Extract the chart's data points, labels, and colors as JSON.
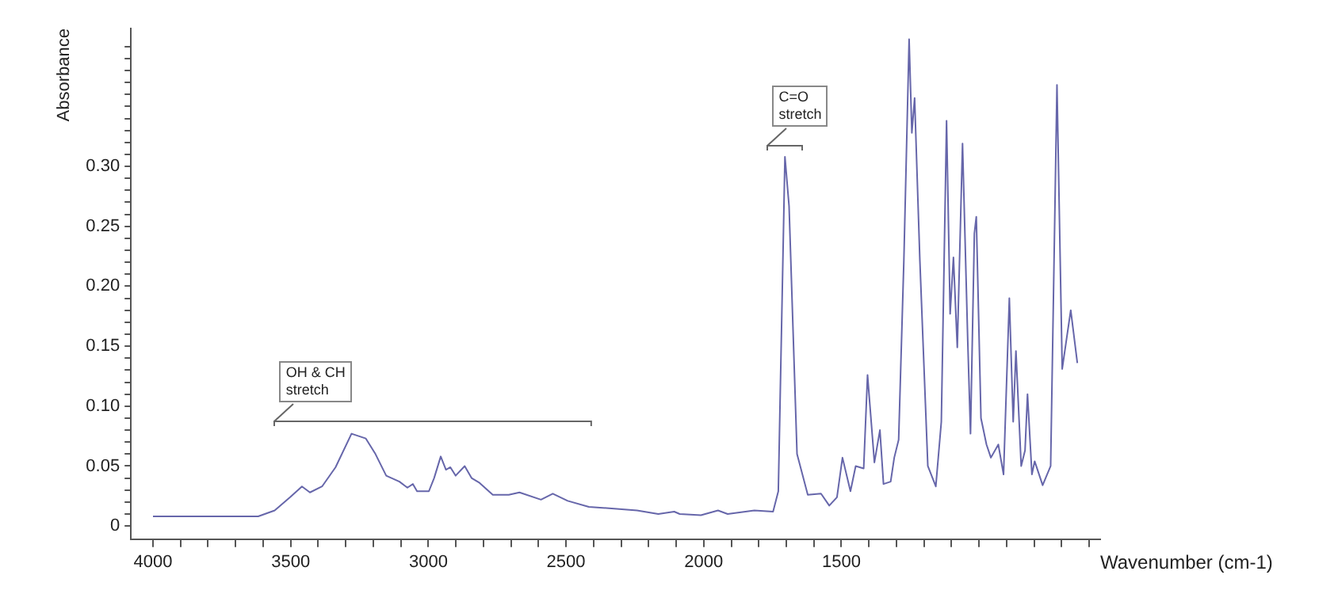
{
  "chart_data": {
    "type": "line",
    "xlabel": "Wavenumber (cm-1)",
    "ylabel": "Absorbance",
    "xlim": [
      4080,
      560
    ],
    "ylim": [
      -0.011,
      0.415
    ],
    "xticks": [
      4000,
      {
        "value": 3900,
        "label": null
      },
      {
        "value": 3800,
        "label": null
      },
      {
        "value": 3700,
        "label": null
      },
      {
        "value": 3600,
        "label": null
      },
      3500,
      {
        "value": 3400,
        "label": null
      },
      {
        "value": 3300,
        "label": null
      },
      {
        "value": 3200,
        "label": null
      },
      {
        "value": 3100,
        "label": null
      },
      3000,
      {
        "value": 2900,
        "label": null
      },
      {
        "value": 2800,
        "label": null
      },
      {
        "value": 2700,
        "label": null
      },
      {
        "value": 2600,
        "label": null
      },
      2500,
      {
        "value": 2400,
        "label": null
      },
      {
        "value": 2300,
        "label": null
      },
      {
        "value": 2200,
        "label": null
      },
      {
        "value": 2100,
        "label": null
      },
      2000,
      {
        "value": 1900,
        "label": null
      },
      {
        "value": 1800,
        "label": null
      },
      {
        "value": 1700,
        "label": null
      },
      {
        "value": 1600,
        "label": null
      },
      1500,
      {
        "value": 1400,
        "label": null
      },
      {
        "value": 1300,
        "label": null
      },
      {
        "value": 1200,
        "label": null
      },
      {
        "value": 1100,
        "label": null
      },
      {
        "value": 1000,
        "label": null
      },
      {
        "value": 900,
        "label": null
      },
      {
        "value": 800,
        "label": null
      },
      {
        "value": 700,
        "label": null
      },
      {
        "value": 600,
        "label": null
      }
    ],
    "yticks": [
      {
        "value": 0,
        "label": "0"
      },
      {
        "value": 0.01,
        "label": null
      },
      {
        "value": 0.02,
        "label": null
      },
      {
        "value": 0.03,
        "label": null
      },
      {
        "value": 0.04,
        "label": null
      },
      {
        "value": 0.05,
        "label": "0.05"
      },
      {
        "value": 0.06,
        "label": null
      },
      {
        "value": 0.07,
        "label": null
      },
      {
        "value": 0.08,
        "label": null
      },
      {
        "value": 0.09,
        "label": null
      },
      {
        "value": 0.1,
        "label": "0.10"
      },
      {
        "value": 0.11,
        "label": null
      },
      {
        "value": 0.12,
        "label": null
      },
      {
        "value": 0.13,
        "label": null
      },
      {
        "value": 0.14,
        "label": null
      },
      {
        "value": 0.15,
        "label": "0.15"
      },
      {
        "value": 0.16,
        "label": null
      },
      {
        "value": 0.17,
        "label": null
      },
      {
        "value": 0.18,
        "label": null
      },
      {
        "value": 0.19,
        "label": null
      },
      {
        "value": 0.2,
        "label": "0.20"
      },
      {
        "value": 0.21,
        "label": null
      },
      {
        "value": 0.22,
        "label": null
      },
      {
        "value": 0.23,
        "label": null
      },
      {
        "value": 0.24,
        "label": null
      },
      {
        "value": 0.25,
        "label": "0.25"
      },
      {
        "value": 0.26,
        "label": null
      },
      {
        "value": 0.27,
        "label": null
      },
      {
        "value": 0.28,
        "label": null
      },
      {
        "value": 0.29,
        "label": null
      },
      {
        "value": 0.3,
        "label": "0.30"
      },
      {
        "value": 0.31,
        "label": null
      },
      {
        "value": 0.32,
        "label": null
      },
      {
        "value": 0.33,
        "label": null
      },
      {
        "value": 0.34,
        "label": null
      },
      {
        "value": 0.35,
        "label": null
      },
      {
        "value": 0.36,
        "label": null
      },
      {
        "value": 0.37,
        "label": null
      },
      {
        "value": 0.38,
        "label": null
      },
      {
        "value": 0.39,
        "label": null
      },
      {
        "value": 0.4,
        "label": null
      }
    ],
    "grid": false,
    "legend": false,
    "annotations": [
      "OH & CH\nstretch",
      "C=O\nstretch"
    ],
    "series": [
      {
        "color": "#6666aa",
        "x": [
          4000,
          3618,
          3558,
          3502,
          3459,
          3430,
          3386,
          3337,
          3279,
          3227,
          3192,
          3153,
          3105,
          3076,
          3056,
          3041,
          2998,
          2979,
          2955,
          2936,
          2920,
          2901,
          2868,
          2843,
          2814,
          2766,
          2708,
          2669,
          2591,
          2548,
          2494,
          2417,
          2242,
          2165,
          2107,
          2087,
          2010,
          1948,
          1913,
          1816,
          1748,
          1729,
          1705,
          1690,
          1661,
          1622,
          1574,
          1544,
          1516,
          1496,
          1467,
          1448,
          1419,
          1405,
          1380,
          1360,
          1347,
          1321,
          1308,
          1292,
          1273,
          1254,
          1244,
          1234,
          1215,
          1186,
          1157,
          1137,
          1118,
          1105,
          1093,
          1079,
          1060,
          1041,
          1031,
          1017,
          1010,
          993,
          973,
          957,
          930,
          911,
          890,
          876,
          866,
          847,
          833,
          824,
          808,
          798,
          769,
          740,
          717,
          698,
          667,
          643
        ],
        "values": [
          0.008,
          0.008,
          0.013,
          0.024,
          0.033,
          0.028,
          0.033,
          0.049,
          0.077,
          0.073,
          0.06,
          0.042,
          0.037,
          0.032,
          0.035,
          0.029,
          0.029,
          0.04,
          0.058,
          0.047,
          0.049,
          0.042,
          0.05,
          0.04,
          0.036,
          0.026,
          0.026,
          0.028,
          0.022,
          0.027,
          0.021,
          0.016,
          0.013,
          0.01,
          0.012,
          0.01,
          0.009,
          0.013,
          0.01,
          0.013,
          0.012,
          0.029,
          0.308,
          0.267,
          0.06,
          0.026,
          0.027,
          0.017,
          0.024,
          0.057,
          0.029,
          0.05,
          0.048,
          0.126,
          0.053,
          0.08,
          0.035,
          0.037,
          0.057,
          0.072,
          0.222,
          0.406,
          0.328,
          0.357,
          0.222,
          0.05,
          0.033,
          0.087,
          0.338,
          0.177,
          0.224,
          0.149,
          0.319,
          0.154,
          0.077,
          0.244,
          0.258,
          0.09,
          0.068,
          0.057,
          0.068,
          0.043,
          0.19,
          0.087,
          0.146,
          0.05,
          0.063,
          0.11,
          0.043,
          0.054,
          0.034,
          0.05,
          0.368,
          0.131,
          0.18,
          0.136
        ]
      }
    ]
  }
}
